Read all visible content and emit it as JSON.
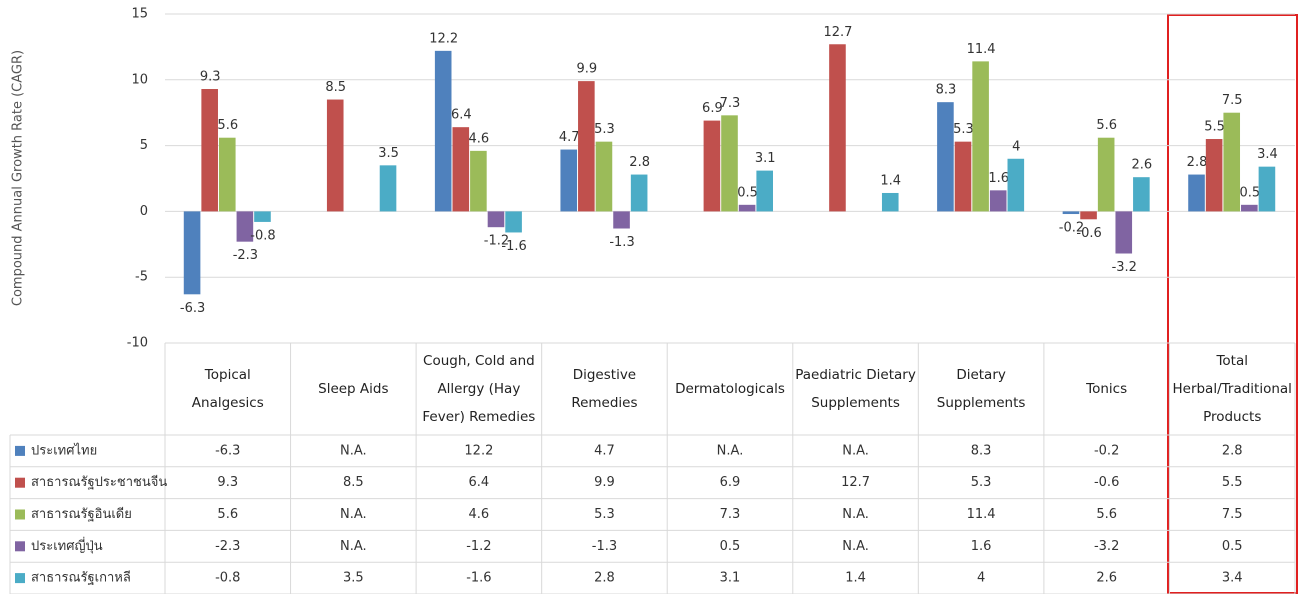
{
  "chart_data": {
    "type": "bar",
    "y_label": "Compound Annual Growth Rate (CAGR)",
    "categories": [
      "Topical Analgesics",
      "Sleep Aids",
      "Cough, Cold and Allergy (Hay Fever) Remedies",
      "Digestive Remedies",
      "Dermatologicals",
      "Paediatric Dietary Supplements",
      "Dietary Supplements",
      "Tonics",
      "Total Herbal/Traditional Products"
    ],
    "series": [
      {
        "name": "ประเทศไทย",
        "color": "#4f81bd",
        "values": [
          -6.3,
          null,
          12.2,
          4.7,
          null,
          null,
          8.3,
          -0.2,
          2.8
        ]
      },
      {
        "name": "สาธารณรัฐประชาชนจีน",
        "color": "#c0504d",
        "values": [
          9.3,
          8.5,
          6.4,
          9.9,
          6.9,
          12.7,
          5.3,
          -0.6,
          5.5
        ]
      },
      {
        "name": "สาธารณรัฐอินเดีย",
        "color": "#9bbb59",
        "values": [
          5.6,
          null,
          4.6,
          5.3,
          7.3,
          null,
          11.4,
          5.6,
          7.5
        ]
      },
      {
        "name": "ประเทศญี่ปุ่น",
        "color": "#8064a2",
        "values": [
          -2.3,
          null,
          -1.2,
          -1.3,
          0.5,
          null,
          1.6,
          -3.2,
          0.5
        ]
      },
      {
        "name": "สาธารณรัฐเกาหลี",
        "color": "#4bacc6",
        "values": [
          -0.8,
          3.5,
          -1.6,
          2.8,
          3.1,
          1.4,
          4,
          2.6,
          3.4
        ]
      }
    ],
    "na_label": "N.A.",
    "ylim": [
      -10,
      15
    ],
    "yticks": [
      -10,
      -5,
      0,
      5,
      10,
      15
    ],
    "grid": true
  }
}
